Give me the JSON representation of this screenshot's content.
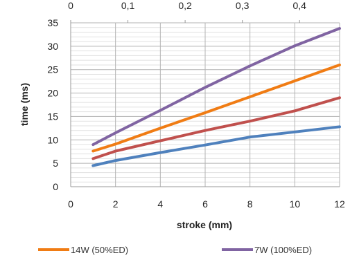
{
  "chart_data": {
    "type": "line",
    "xlabel": "stroke (mm)",
    "ylabel": "time (ms)",
    "xlim": [
      0,
      12
    ],
    "ylim": [
      0,
      35
    ],
    "x_ticks": [
      0,
      2,
      4,
      6,
      8,
      10,
      12
    ],
    "y_ticks": [
      0,
      5,
      10,
      15,
      20,
      25,
      30,
      35
    ],
    "top_axis": {
      "ticks": [
        "0",
        "0,1",
        "0,2",
        "0,3",
        "0,4"
      ],
      "values": [
        0,
        0.1,
        0.2,
        0.3,
        0.4
      ],
      "range": [
        0,
        0.47
      ]
    },
    "grid": true,
    "legend_position": "bottom",
    "series": [
      {
        "name": "",
        "color": "#4f81bd",
        "x": [
          1,
          2,
          4,
          6,
          8,
          10,
          12
        ],
        "y": [
          4.5,
          5.6,
          7.3,
          8.9,
          10.6,
          11.7,
          12.8
        ]
      },
      {
        "name": "",
        "color": "#c0504d",
        "x": [
          1,
          2,
          4,
          6,
          8,
          10,
          12
        ],
        "y": [
          6.0,
          7.6,
          9.8,
          12.0,
          14.0,
          16.2,
          19.0
        ]
      },
      {
        "name": "14W (50%ED)",
        "color": "#f07c14",
        "x": [
          1,
          2,
          4,
          6,
          8,
          10,
          12
        ],
        "y": [
          7.6,
          9.1,
          12.5,
          15.8,
          19.2,
          22.6,
          26.0
        ]
      },
      {
        "name": "7W (100%ED)",
        "color": "#8064a2",
        "x": [
          1,
          2,
          4,
          6,
          8,
          10,
          12
        ],
        "y": [
          9.0,
          11.5,
          16.3,
          21.2,
          25.8,
          30.1,
          33.8
        ]
      }
    ]
  }
}
